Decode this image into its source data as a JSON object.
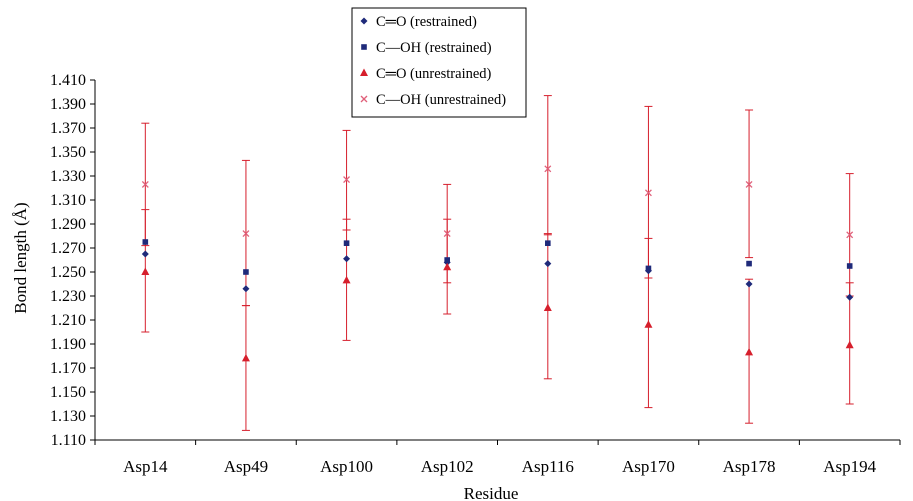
{
  "chart_data": {
    "type": "scatter",
    "xlabel": "Residue",
    "ylabel": "Bond length (Å)",
    "categories": [
      "Asp14",
      "Asp49",
      "Asp100",
      "Asp102",
      "Asp116",
      "Asp170",
      "Asp178",
      "Asp194"
    ],
    "ylim": [
      1.11,
      1.41
    ],
    "y_ticks": [
      "1.110",
      "1.130",
      "1.150",
      "1.170",
      "1.190",
      "1.210",
      "1.230",
      "1.250",
      "1.270",
      "1.290",
      "1.310",
      "1.330",
      "1.350",
      "1.370",
      "1.390",
      "1.410"
    ],
    "grid": false,
    "legend_position": "top-center",
    "series": [
      {
        "name": "C═O (restrained)",
        "marker": "diamond",
        "color": "#1f2a7a",
        "values": [
          1.265,
          1.236,
          1.261,
          1.258,
          1.257,
          1.251,
          1.24,
          1.229
        ]
      },
      {
        "name": "C—OH (restrained)",
        "marker": "square",
        "color": "#1f2a7a",
        "values": [
          1.275,
          1.25,
          1.274,
          1.26,
          1.274,
          1.253,
          1.257,
          1.255
        ]
      },
      {
        "name": "C═O (unrestrained)",
        "marker": "triangle",
        "color": "#d61f2c",
        "values": [
          1.25,
          1.178,
          1.243,
          1.254,
          1.22,
          1.206,
          1.183,
          1.189
        ],
        "error_low": [
          1.2,
          1.118,
          1.193,
          1.215,
          1.161,
          1.137,
          1.124,
          1.14
        ],
        "error_high": [
          1.302,
          1.222,
          1.294,
          1.294,
          1.282,
          1.278,
          1.244,
          1.241
        ]
      },
      {
        "name": "C—OH (unrestrained)",
        "marker": "x",
        "color": "#e0607a",
        "values": [
          1.323,
          1.282,
          1.327,
          1.282,
          1.336,
          1.316,
          1.323,
          1.281
        ],
        "error_low": [
          1.272,
          1.222,
          1.285,
          1.241,
          1.281,
          1.245,
          1.262,
          1.23
        ],
        "error_high": [
          1.374,
          1.343,
          1.368,
          1.323,
          1.397,
          1.388,
          1.385,
          1.332
        ]
      }
    ]
  }
}
